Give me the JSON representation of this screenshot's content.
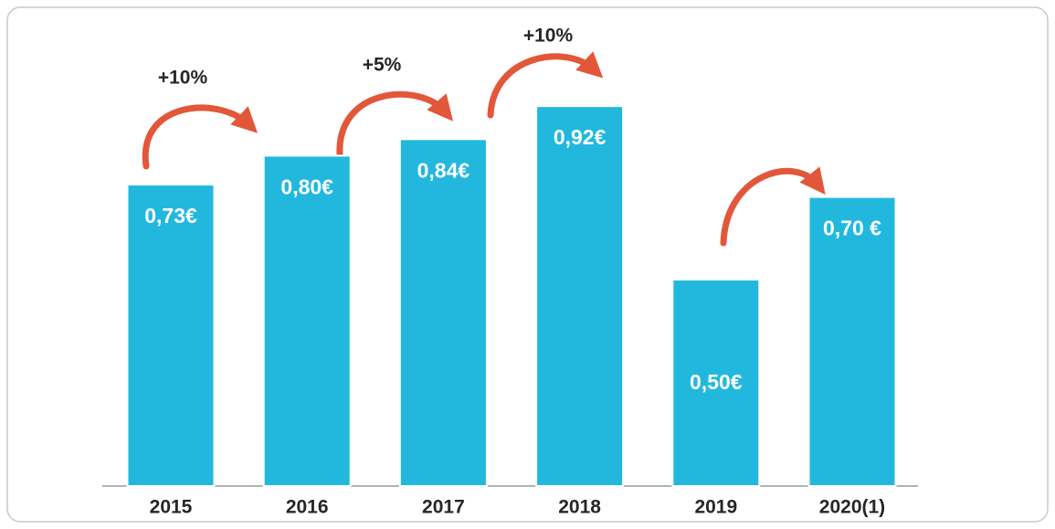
{
  "chart_data": {
    "type": "bar",
    "categories": [
      "2015",
      "2016",
      "2017",
      "2018",
      "2019",
      "2020(1)"
    ],
    "values": [
      0.73,
      0.8,
      0.84,
      0.92,
      0.5,
      0.7
    ],
    "value_labels": [
      "0,73€",
      "0,80€",
      "0,84€",
      "0,92€",
      "0,50€",
      "0,70 €"
    ],
    "color": "#22b8de",
    "ylim": [
      0,
      1
    ],
    "annotations": [
      "+10%",
      "+5%",
      "+10%"
    ]
  }
}
